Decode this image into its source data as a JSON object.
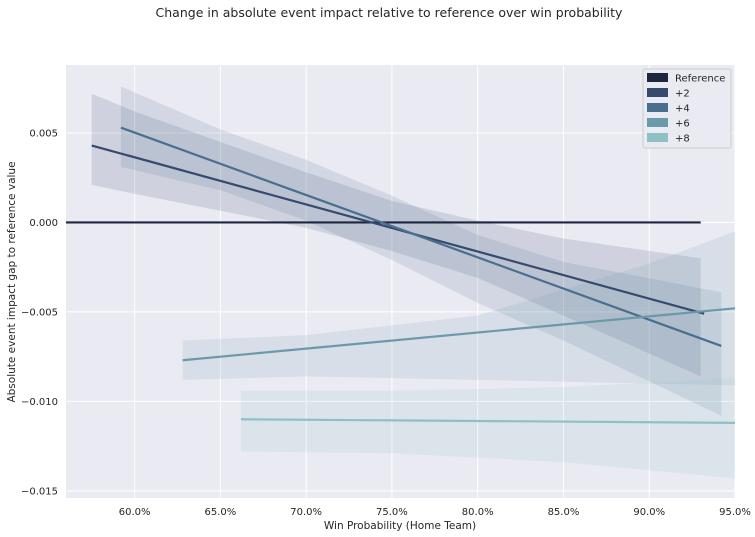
{
  "chart_data": {
    "type": "line",
    "title": "Change in absolute event impact relative to reference over win probability",
    "xlabel": "Win Probability (Home Team)",
    "ylabel": "Absolute event impact gap to reference value",
    "xlim": [
      0.56,
      0.95
    ],
    "ylim": [
      -0.0154,
      0.0088
    ],
    "x_ticks": [
      0.6,
      0.65,
      0.7,
      0.75,
      0.8,
      0.85,
      0.9,
      0.95
    ],
    "x_tick_labels": [
      "60.0%",
      "65.0%",
      "70.0%",
      "75.0%",
      "80.0%",
      "85.0%",
      "90.0%",
      "95.0%"
    ],
    "y_ticks": [
      0.005,
      0.0,
      -0.005,
      -0.01,
      -0.015
    ],
    "y_tick_labels": [
      "0.005",
      "0.000",
      "−0.005",
      "−0.010",
      "−0.015"
    ],
    "grid": true,
    "legend_position": "top-right",
    "series": [
      {
        "name": "Reference",
        "color": "#1f2640",
        "x": [
          0.56,
          0.93
        ],
        "y": [
          0.0,
          0.0
        ],
        "band": null
      },
      {
        "name": "+2",
        "color": "#354a6e",
        "x": [
          0.575,
          0.932
        ],
        "y": [
          0.0043,
          -0.0051
        ],
        "band": {
          "x": [
            0.575,
            0.6,
            0.7,
            0.75,
            0.8,
            0.85,
            0.93
          ],
          "upper": [
            0.0072,
            0.0062,
            0.0028,
            0.0012,
            0.0001,
            -0.0009,
            -0.002
          ],
          "lower": [
            0.0021,
            0.0016,
            -0.0003,
            -0.0016,
            -0.0031,
            -0.0052,
            -0.0086
          ]
        }
      },
      {
        "name": "+4",
        "color": "#4a6e8e",
        "x": [
          0.592,
          0.942
        ],
        "y": [
          0.0053,
          -0.0069
        ],
        "band": {
          "x": [
            0.592,
            0.65,
            0.7,
            0.75,
            0.8,
            0.85,
            0.942
          ],
          "upper": [
            0.0076,
            0.0052,
            0.0035,
            0.0015,
            -0.0007,
            -0.0022,
            -0.0039
          ],
          "lower": [
            0.0031,
            0.0018,
            0.0001,
            -0.0021,
            -0.0045,
            -0.0066,
            -0.0108
          ]
        }
      },
      {
        "name": "+6",
        "color": "#6a9aaa",
        "x": [
          0.628,
          0.95
        ],
        "y": [
          -0.0077,
          -0.0048
        ],
        "band": {
          "x": [
            0.628,
            0.7,
            0.8,
            0.9,
            0.95
          ],
          "upper": [
            -0.0066,
            -0.0063,
            -0.0052,
            -0.0023,
            -0.0005
          ],
          "lower": [
            -0.0088,
            -0.0086,
            -0.0088,
            -0.009,
            -0.0091
          ]
        }
      },
      {
        "name": "+8",
        "color": "#8ec0c4",
        "x": [
          0.662,
          0.95
        ],
        "y": [
          -0.011,
          -0.0112
        ],
        "band": {
          "x": [
            0.662,
            0.75,
            0.85,
            0.95
          ],
          "upper": [
            -0.0094,
            -0.0094,
            -0.0092,
            -0.0087
          ],
          "lower": [
            -0.0128,
            -0.0129,
            -0.0134,
            -0.0143
          ]
        }
      }
    ]
  }
}
